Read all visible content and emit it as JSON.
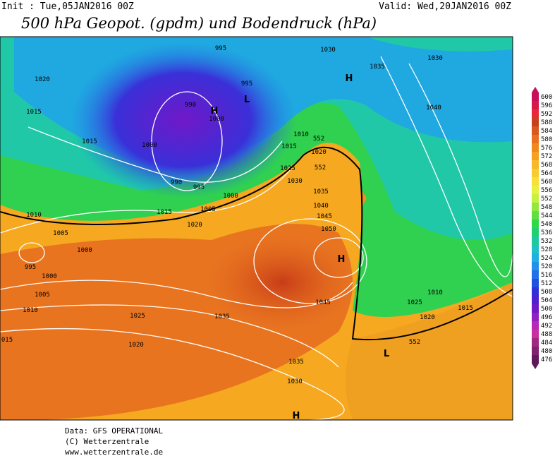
{
  "header": {
    "init": "Init : Tue,05JAN2016 00Z",
    "valid": "Valid: Wed,20JAN2016 00Z",
    "title": "500 hPa Geopot. (gpdm) und Bodendruck (hPa)"
  },
  "colorbar": {
    "levels": [
      600,
      596,
      592,
      588,
      584,
      580,
      576,
      572,
      568,
      564,
      560,
      556,
      552,
      548,
      544,
      540,
      536,
      532,
      528,
      524,
      520,
      516,
      512,
      508,
      504,
      500,
      496,
      492,
      488,
      484,
      480,
      476
    ],
    "colors": [
      "#c8105a",
      "#d8184a",
      "#e8283a",
      "#c8401e",
      "#d85820",
      "#e87020",
      "#f08820",
      "#f5a020",
      "#f8b828",
      "#f8cc30",
      "#f8e038",
      "#e8f040",
      "#c8f040",
      "#90e840",
      "#60e040",
      "#30d848",
      "#20d070",
      "#20c8a0",
      "#20c0c8",
      "#20b0e0",
      "#2090e8",
      "#2070e8",
      "#2050e0",
      "#3030d8",
      "#5020d0",
      "#7018c8",
      "#9020c0",
      "#b828b8",
      "#c830a0",
      "#a02880",
      "#802070",
      "#601858"
    ]
  },
  "isobar_labels": [
    "995",
    "1030",
    "1030",
    "1035",
    "1020",
    "995",
    "990",
    "1040",
    "1015",
    "1000",
    "1010",
    "1015",
    "1000",
    "1015",
    "1020",
    "1025",
    "990",
    "1030",
    "995",
    "1000",
    "1035",
    "1040",
    "1005",
    "1010",
    "1015",
    "1045",
    "1020",
    "1050",
    "1005",
    "1000",
    "995",
    "1000",
    "1005",
    "1010",
    "1025",
    "1045",
    "1015",
    "1010",
    "1020",
    "1025",
    "1035",
    "015",
    "1020",
    "1035",
    "1030",
    "552",
    "552",
    "552"
  ],
  "centers": [
    "H",
    "L",
    "H",
    "H",
    "L",
    "H"
  ],
  "footer": {
    "source": "Data: GFS OPERATIONAL",
    "copyright": "(C) Wetterzentrale",
    "url": "www.wetterzentrale.de"
  }
}
